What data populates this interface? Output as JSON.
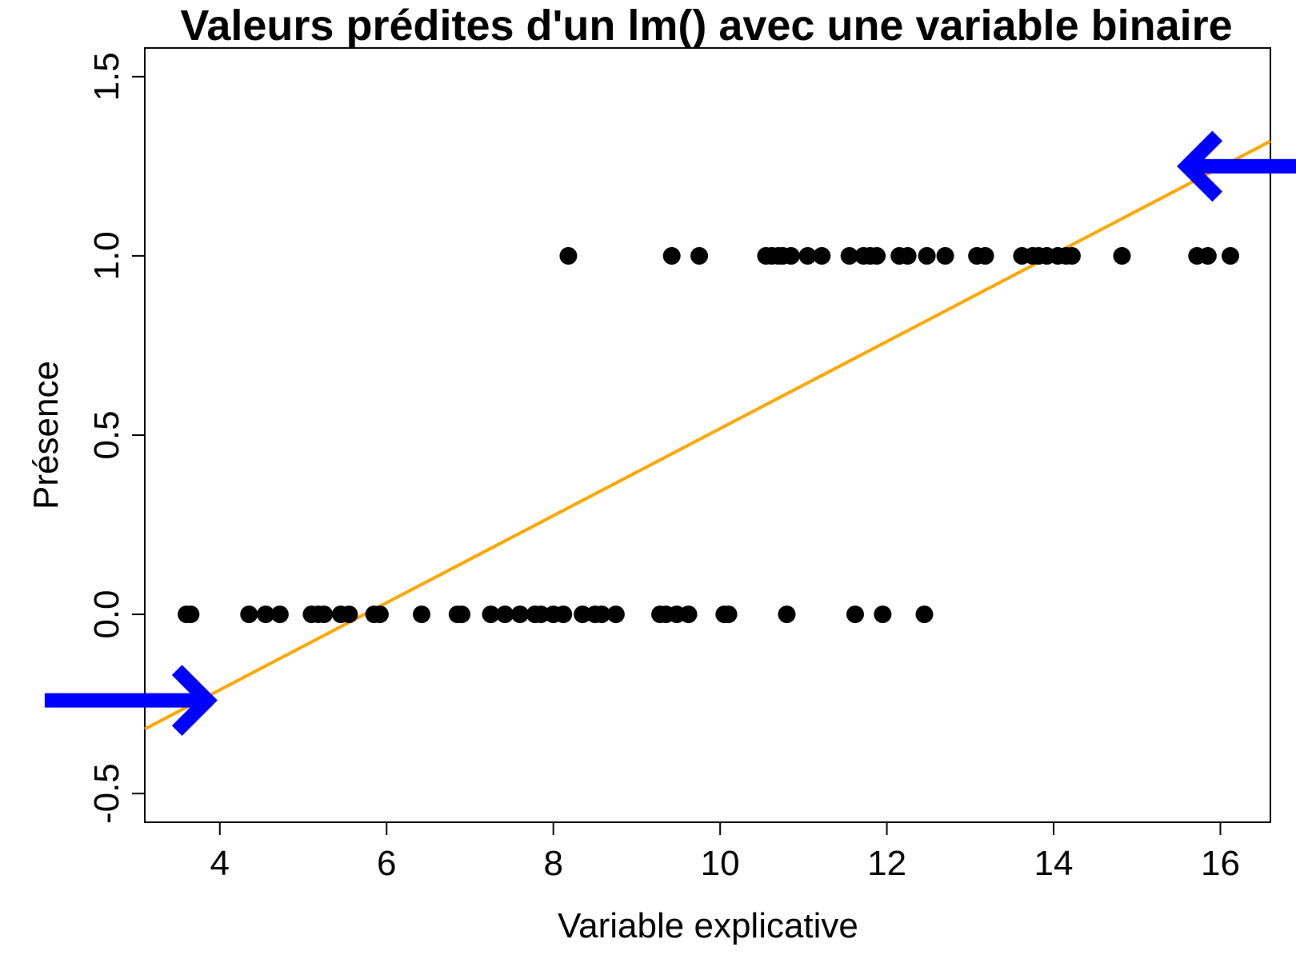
{
  "chart_data": {
    "type": "scatter",
    "title": "Valeurs prédites d'un lm() avec une variable binaire",
    "xlabel": "Variable explicative",
    "ylabel": "Présence",
    "xlim": [
      3.1,
      16.6
    ],
    "ylim": [
      -0.58,
      1.58
    ],
    "xticks": [
      4,
      6,
      8,
      10,
      12,
      14,
      16
    ],
    "yticks": [
      -0.5,
      0.0,
      0.5,
      1.0,
      1.5
    ],
    "xtick_labels": [
      "4",
      "6",
      "8",
      "10",
      "12",
      "14",
      "16"
    ],
    "ytick_labels": [
      "-0.5",
      "0.0",
      "0.5",
      "1.0",
      "1.5"
    ],
    "grid": false,
    "series": [
      {
        "values": [
          {
            "x": 3.6,
            "y": 0
          },
          {
            "x": 3.65,
            "y": 0
          },
          {
            "x": 4.35,
            "y": 0
          },
          {
            "x": 4.55,
            "y": 0
          },
          {
            "x": 4.72,
            "y": 0
          },
          {
            "x": 5.1,
            "y": 0
          },
          {
            "x": 5.18,
            "y": 0
          },
          {
            "x": 5.25,
            "y": 0
          },
          {
            "x": 5.45,
            "y": 0
          },
          {
            "x": 5.55,
            "y": 0
          },
          {
            "x": 5.85,
            "y": 0
          },
          {
            "x": 5.92,
            "y": 0
          },
          {
            "x": 6.42,
            "y": 0
          },
          {
            "x": 6.85,
            "y": 0
          },
          {
            "x": 6.9,
            "y": 0
          },
          {
            "x": 7.25,
            "y": 0
          },
          {
            "x": 7.42,
            "y": 0
          },
          {
            "x": 7.6,
            "y": 0
          },
          {
            "x": 7.78,
            "y": 0
          },
          {
            "x": 7.85,
            "y": 0
          },
          {
            "x": 8.0,
            "y": 0
          },
          {
            "x": 8.12,
            "y": 0
          },
          {
            "x": 8.35,
            "y": 0
          },
          {
            "x": 8.5,
            "y": 0
          },
          {
            "x": 8.58,
            "y": 0
          },
          {
            "x": 8.75,
            "y": 0
          },
          {
            "x": 9.28,
            "y": 0
          },
          {
            "x": 9.35,
            "y": 0
          },
          {
            "x": 9.48,
            "y": 0
          },
          {
            "x": 9.62,
            "y": 0
          },
          {
            "x": 10.05,
            "y": 0
          },
          {
            "x": 10.1,
            "y": 0
          },
          {
            "x": 10.8,
            "y": 0
          },
          {
            "x": 11.62,
            "y": 0
          },
          {
            "x": 11.95,
            "y": 0
          },
          {
            "x": 12.45,
            "y": 0
          },
          {
            "x": 8.18,
            "y": 1
          },
          {
            "x": 9.42,
            "y": 1
          },
          {
            "x": 9.75,
            "y": 1
          },
          {
            "x": 10.55,
            "y": 1
          },
          {
            "x": 10.62,
            "y": 1
          },
          {
            "x": 10.7,
            "y": 1
          },
          {
            "x": 10.75,
            "y": 1
          },
          {
            "x": 10.85,
            "y": 1
          },
          {
            "x": 11.05,
            "y": 1
          },
          {
            "x": 11.22,
            "y": 1
          },
          {
            "x": 11.55,
            "y": 1
          },
          {
            "x": 11.72,
            "y": 1
          },
          {
            "x": 11.8,
            "y": 1
          },
          {
            "x": 11.88,
            "y": 1
          },
          {
            "x": 12.15,
            "y": 1
          },
          {
            "x": 12.25,
            "y": 1
          },
          {
            "x": 12.48,
            "y": 1
          },
          {
            "x": 12.7,
            "y": 1
          },
          {
            "x": 13.08,
            "y": 1
          },
          {
            "x": 13.18,
            "y": 1
          },
          {
            "x": 13.62,
            "y": 1
          },
          {
            "x": 13.75,
            "y": 1
          },
          {
            "x": 13.82,
            "y": 1
          },
          {
            "x": 13.92,
            "y": 1
          },
          {
            "x": 14.05,
            "y": 1
          },
          {
            "x": 14.15,
            "y": 1
          },
          {
            "x": 14.22,
            "y": 1
          },
          {
            "x": 14.82,
            "y": 1
          },
          {
            "x": 15.72,
            "y": 1
          },
          {
            "x": 15.85,
            "y": 1
          },
          {
            "x": 16.12,
            "y": 1
          }
        ]
      }
    ],
    "regression_line": {
      "color": "#ffa500",
      "points": [
        {
          "x": 3.1,
          "y": -0.32
        },
        {
          "x": 16.6,
          "y": 1.32
        }
      ]
    },
    "annotations": [
      {
        "type": "arrow",
        "color": "#0000ff",
        "direction": "right",
        "from": {
          "x": 1.9,
          "y": -0.24
        },
        "to": {
          "x": 3.85,
          "y": -0.24
        }
      },
      {
        "type": "arrow",
        "color": "#0000ff",
        "direction": "left",
        "from": {
          "x": 17.2,
          "y": 1.25
        },
        "to": {
          "x": 15.6,
          "y": 1.25
        }
      }
    ],
    "colors": {
      "points": "#000000",
      "arrows": "#0000ff",
      "line": "#ffa500",
      "frame": "#000000"
    }
  }
}
